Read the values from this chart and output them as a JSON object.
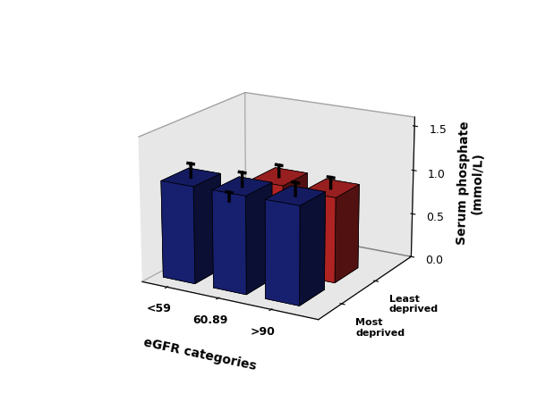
{
  "ylabel": "Serum phosphate\n(mmol/L)",
  "xlabel": "eGFR categories",
  "egfr_labels": [
    "<59",
    "60.89",
    ">90"
  ],
  "deprivation_labels": [
    "Most\ndeprived",
    "Least\ndeprived"
  ],
  "bar_heights": {
    "most_deprived": [
      1.08,
      1.08,
      1.08
    ],
    "least_deprived": [
      0.6,
      0.98,
      0.95
    ]
  },
  "error_bars": {
    "most_deprived": [
      0.15,
      0.15,
      0.14
    ],
    "least_deprived": [
      0.1,
      0.13,
      0.12
    ]
  },
  "colors": {
    "most_deprived": "#1a237e",
    "least_deprived": "#c62828"
  },
  "ylim": [
    0.0,
    1.6
  ],
  "yticks": [
    0.0,
    0.5,
    1.0,
    1.5
  ],
  "wall_color": "#d0d0d0",
  "floor_color": "#b8b8b8"
}
